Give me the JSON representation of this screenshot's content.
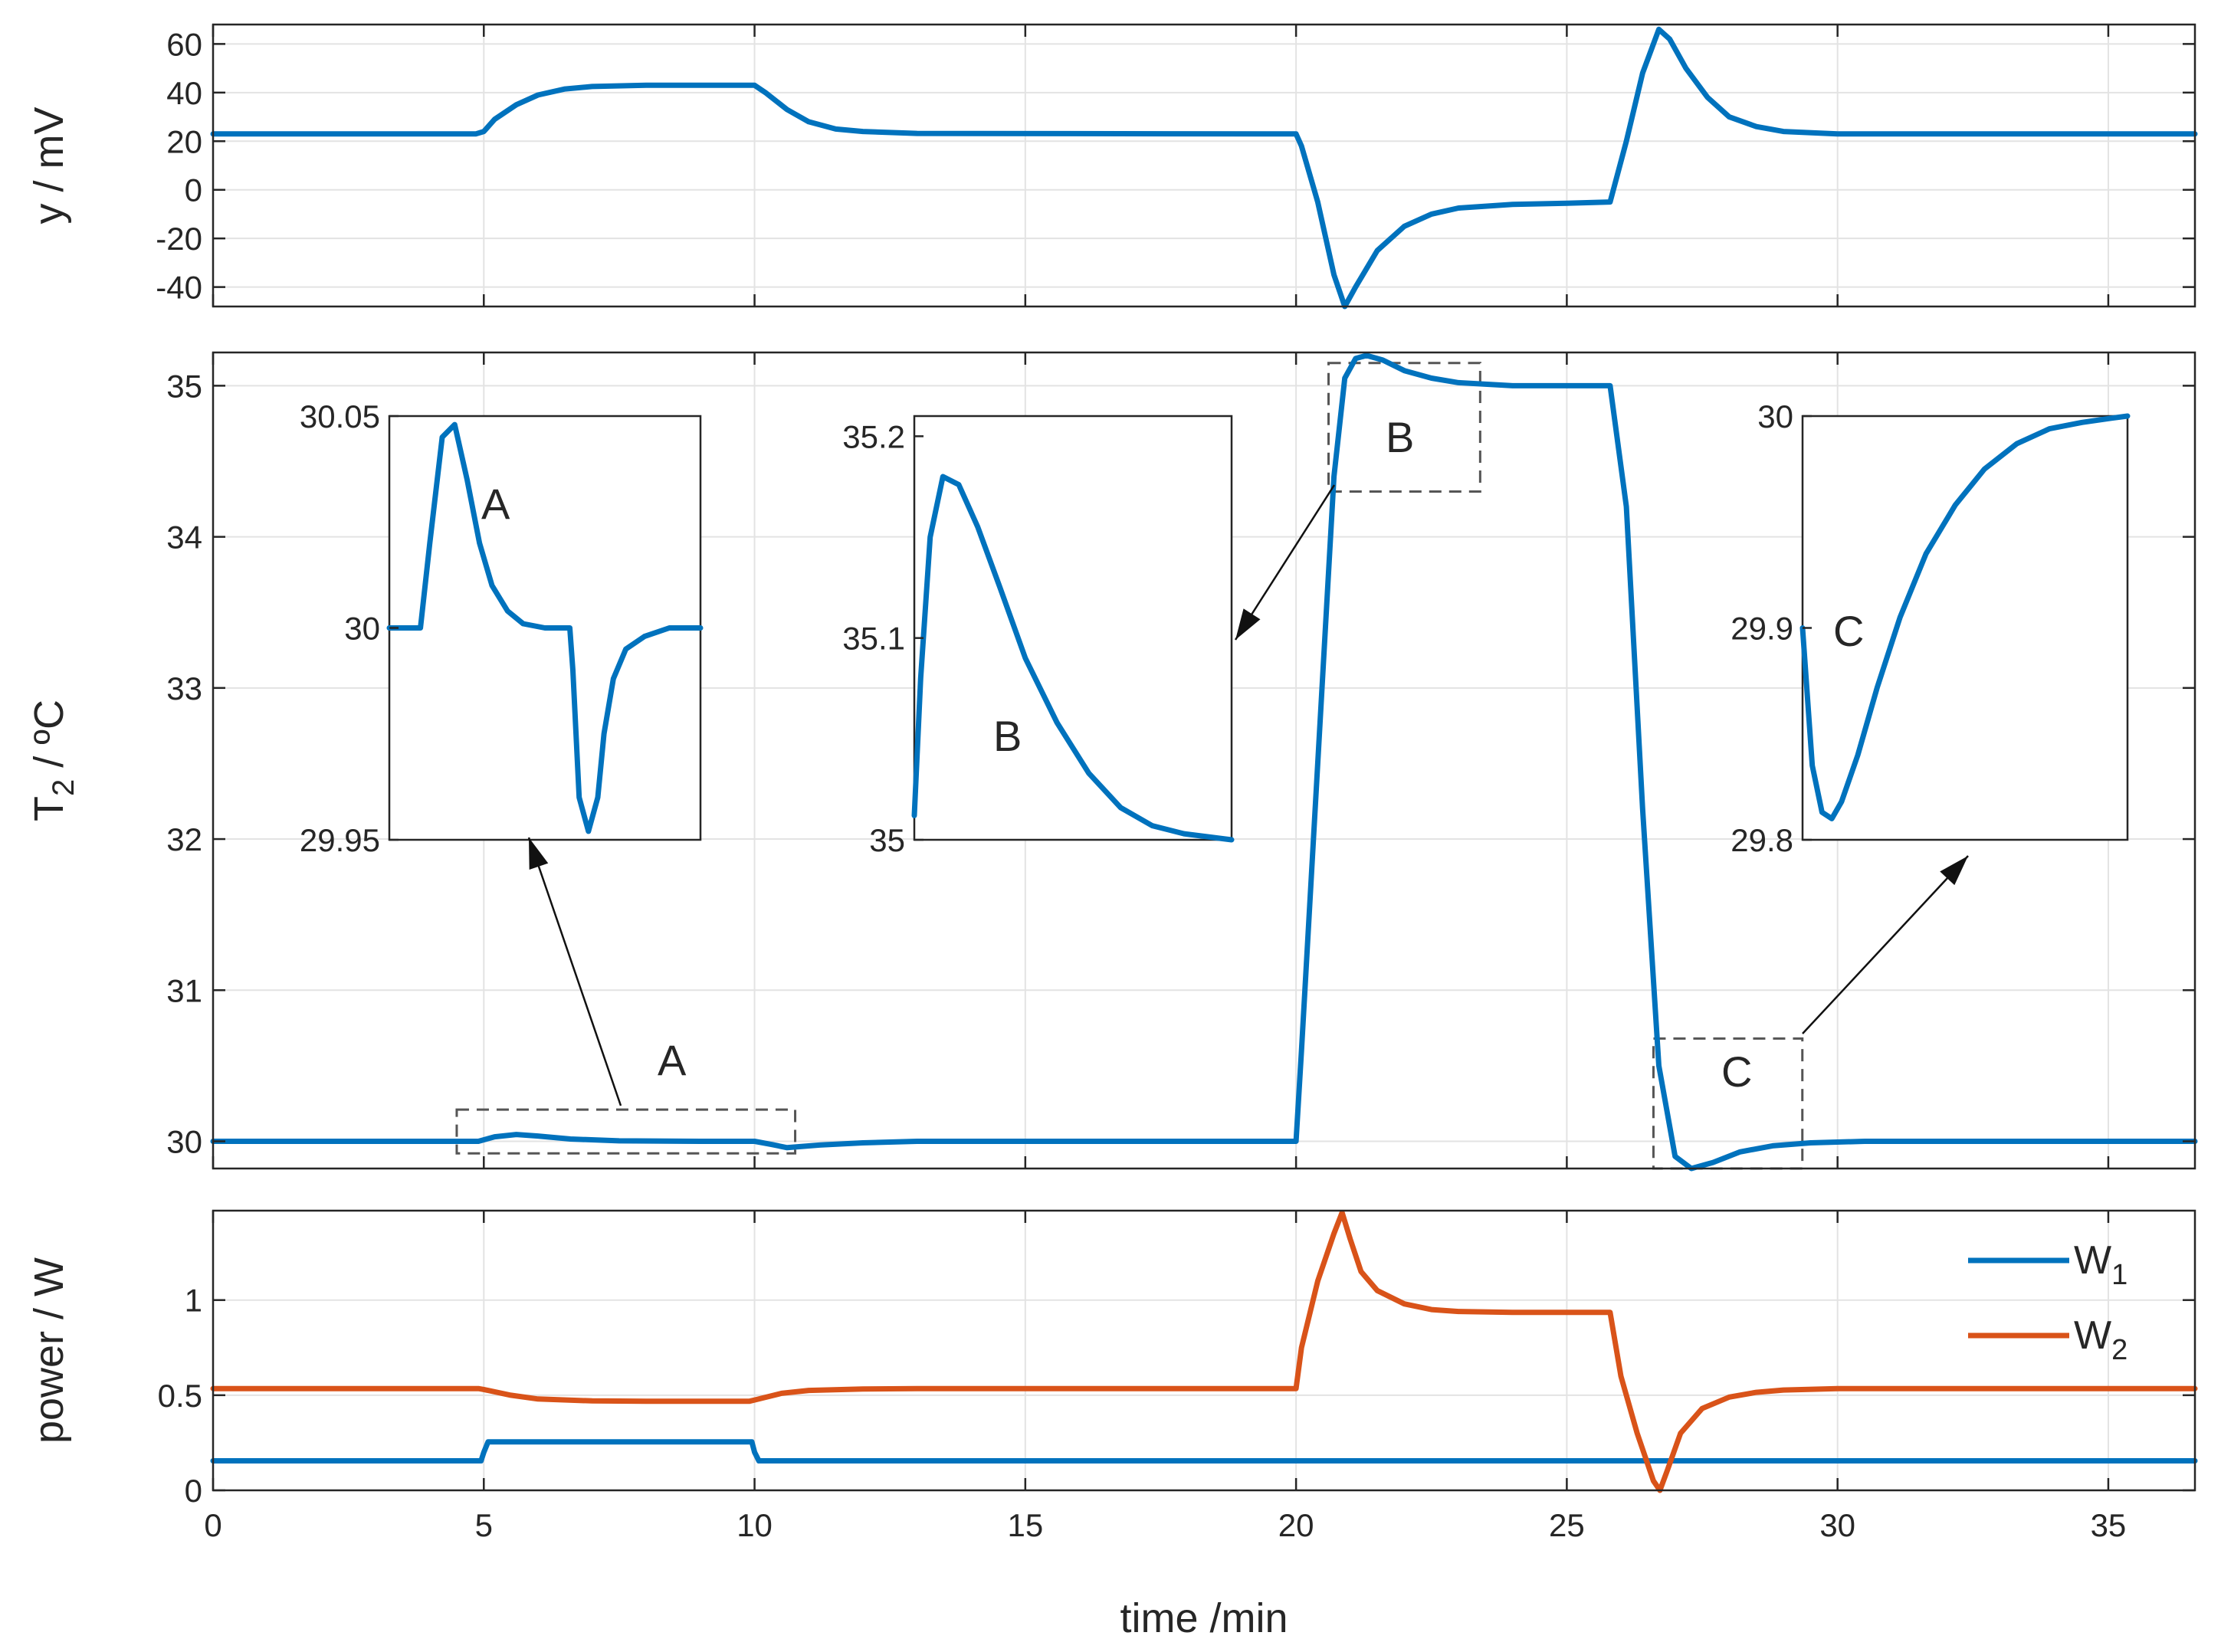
{
  "colors": {
    "w1": "#0072BD",
    "w2": "#D95319",
    "axis": "#262626",
    "grid": "#e3e3e3",
    "box": "#555555"
  },
  "chart_data": [
    {
      "id": "y",
      "type": "line",
      "ylabel": "y / mV",
      "xlim": [
        0,
        36.6
      ],
      "ylim": [
        -48,
        68
      ],
      "yticks": [
        60,
        40,
        20,
        0,
        -20,
        -40
      ],
      "ytick_labels": [
        "60",
        "40",
        "20",
        "0",
        "-20",
        "-40"
      ],
      "grid": true,
      "series": [
        {
          "color": "#0072BD",
          "x": [
            0,
            4.85,
            5,
            5.2,
            5.6,
            6,
            6.5,
            7,
            8,
            9,
            10,
            10.2,
            10.6,
            11,
            11.5,
            12,
            13,
            20,
            20.1,
            20.4,
            20.7,
            20.9,
            21.1,
            21.5,
            22,
            22.5,
            23,
            24,
            25,
            25.8,
            26.1,
            26.4,
            26.7,
            26.9,
            27.2,
            27.6,
            28,
            28.5,
            29,
            30,
            36.6
          ],
          "y": [
            23,
            23,
            24,
            29,
            35,
            39,
            41.5,
            42.5,
            43,
            43,
            43,
            40,
            33,
            28,
            25,
            24,
            23.2,
            23,
            18,
            -5,
            -35,
            -48,
            -40,
            -25,
            -15,
            -10,
            -7.5,
            -6,
            -5.5,
            -5,
            20,
            48,
            66,
            62,
            50,
            38,
            30,
            26,
            24,
            23,
            23
          ]
        }
      ]
    },
    {
      "id": "T2",
      "type": "line",
      "ylabel": "T2 / ºC",
      "xlim": [
        0,
        36.6
      ],
      "ylim": [
        29.82,
        35.22
      ],
      "yticks": [
        35,
        34,
        33,
        32,
        31,
        30
      ],
      "ytick_labels": [
        "35",
        "34",
        "33",
        "32",
        "31",
        "30"
      ],
      "grid": true,
      "series": [
        {
          "color": "#0072BD",
          "x": [
            0,
            4.9,
            5.2,
            5.6,
            6,
            6.6,
            7.5,
            9,
            10,
            10.3,
            10.6,
            11.2,
            12,
            13,
            20,
            20.1,
            20.4,
            20.7,
            20.9,
            21.1,
            21.3,
            21.6,
            22,
            22.5,
            23,
            24,
            25.8,
            26.1,
            26.4,
            26.7,
            27,
            27.3,
            27.7,
            28.2,
            28.8,
            29.5,
            30.5,
            36.6
          ],
          "y": [
            30,
            30,
            30.03,
            30.045,
            30.035,
            30.015,
            30.003,
            30,
            30,
            29.98,
            29.958,
            29.975,
            29.99,
            30,
            30,
            30.6,
            32.5,
            34.4,
            35.05,
            35.18,
            35.2,
            35.17,
            35.1,
            35.05,
            35.02,
            35,
            35,
            34.2,
            32.2,
            30.5,
            29.9,
            29.82,
            29.86,
            29.93,
            29.97,
            29.99,
            30,
            30
          ]
        }
      ]
    },
    {
      "id": "power",
      "type": "line",
      "ylabel": "power / W",
      "xlabel": "time /min",
      "xlim": [
        0,
        36.6
      ],
      "ylim": [
        0,
        1.47
      ],
      "xticks": [
        0,
        5,
        10,
        15,
        20,
        25,
        30,
        35
      ],
      "xtick_labels": [
        "0",
        "5",
        "10",
        "15",
        "20",
        "25",
        "30",
        "35"
      ],
      "yticks": [
        1,
        0.5,
        0
      ],
      "ytick_labels": [
        "1",
        "0.5",
        "0"
      ],
      "grid": true,
      "legend": {
        "position": "top-right",
        "entries": [
          {
            "label": "W",
            "sub": "1"
          },
          {
            "label": "W",
            "sub": "2"
          }
        ]
      },
      "series": [
        {
          "color": "#0072BD",
          "x": [
            0,
            4.95,
            5,
            5.08,
            9.95,
            10,
            10.08,
            36.6
          ],
          "y": [
            0.155,
            0.155,
            0.2,
            0.255,
            0.255,
            0.2,
            0.155,
            0.155
          ]
        },
        {
          "color": "#D95319",
          "x": [
            0,
            4.9,
            5,
            5.5,
            6,
            7,
            8,
            9.9,
            10,
            10.5,
            11,
            12,
            13,
            20,
            20.1,
            20.4,
            20.7,
            20.85,
            21,
            21.2,
            21.5,
            22,
            22.5,
            23,
            24,
            25.8,
            26,
            26.3,
            26.6,
            26.72,
            26.85,
            27.1,
            27.5,
            28,
            28.5,
            29,
            30,
            36.6
          ],
          "y": [
            0.535,
            0.535,
            0.53,
            0.5,
            0.48,
            0.47,
            0.468,
            0.468,
            0.475,
            0.51,
            0.525,
            0.533,
            0.535,
            0.535,
            0.75,
            1.1,
            1.35,
            1.46,
            1.32,
            1.15,
            1.05,
            0.98,
            0.95,
            0.94,
            0.935,
            0.935,
            0.6,
            0.3,
            0.05,
            0,
            0.1,
            0.3,
            0.43,
            0.49,
            0.515,
            0.527,
            0.535,
            0.535
          ]
        }
      ]
    },
    {
      "id": "inset-A",
      "type": "line",
      "annotation": "A",
      "ylim": [
        29.95,
        30.05
      ],
      "yticks": [
        30.05,
        30,
        29.95
      ],
      "ytick_labels": [
        "30.05",
        "30",
        "29.95"
      ],
      "series": [
        {
          "color": "#0072BD",
          "x": [
            0,
            0.1,
            0.13,
            0.17,
            0.21,
            0.25,
            0.29,
            0.33,
            0.38,
            0.43,
            0.5,
            0.58,
            0.59,
            0.61,
            0.64,
            0.67,
            0.69,
            0.72,
            0.76,
            0.82,
            0.9,
            1
          ],
          "y": [
            30,
            30,
            30.02,
            30.045,
            30.048,
            30.035,
            30.02,
            30.01,
            30.004,
            30.001,
            30,
            30,
            29.99,
            29.96,
            29.952,
            29.96,
            29.975,
            29.988,
            29.995,
            29.998,
            30,
            30
          ]
        }
      ]
    },
    {
      "id": "inset-B",
      "type": "line",
      "annotation": "B",
      "ylim": [
        35,
        35.21
      ],
      "yticks": [
        35.2,
        35.1,
        35
      ],
      "ytick_labels": [
        "35.2",
        "35.1",
        "35"
      ],
      "series": [
        {
          "color": "#0072BD",
          "x": [
            0,
            0.02,
            0.05,
            0.09,
            0.14,
            0.2,
            0.27,
            0.35,
            0.45,
            0.55,
            0.65,
            0.75,
            0.85,
            0.95,
            1
          ],
          "y": [
            35.012,
            35.08,
            35.15,
            35.18,
            35.176,
            35.155,
            35.125,
            35.09,
            35.058,
            35.033,
            35.016,
            35.007,
            35.003,
            35.001,
            35
          ]
        }
      ]
    },
    {
      "id": "inset-C",
      "type": "line",
      "annotation": "C",
      "ylim": [
        29.8,
        30
      ],
      "yticks": [
        30,
        29.9,
        29.8
      ],
      "ytick_labels": [
        "30",
        "29.9",
        "29.8"
      ],
      "series": [
        {
          "color": "#0072BD",
          "x": [
            0,
            0.03,
            0.06,
            0.09,
            0.12,
            0.17,
            0.23,
            0.3,
            0.38,
            0.47,
            0.56,
            0.66,
            0.76,
            0.86,
            0.95,
            1
          ],
          "y": [
            29.9,
            29.835,
            29.813,
            29.81,
            29.818,
            29.84,
            29.872,
            29.905,
            29.935,
            29.958,
            29.975,
            29.987,
            29.994,
            29.997,
            29.999,
            30
          ]
        }
      ]
    }
  ]
}
